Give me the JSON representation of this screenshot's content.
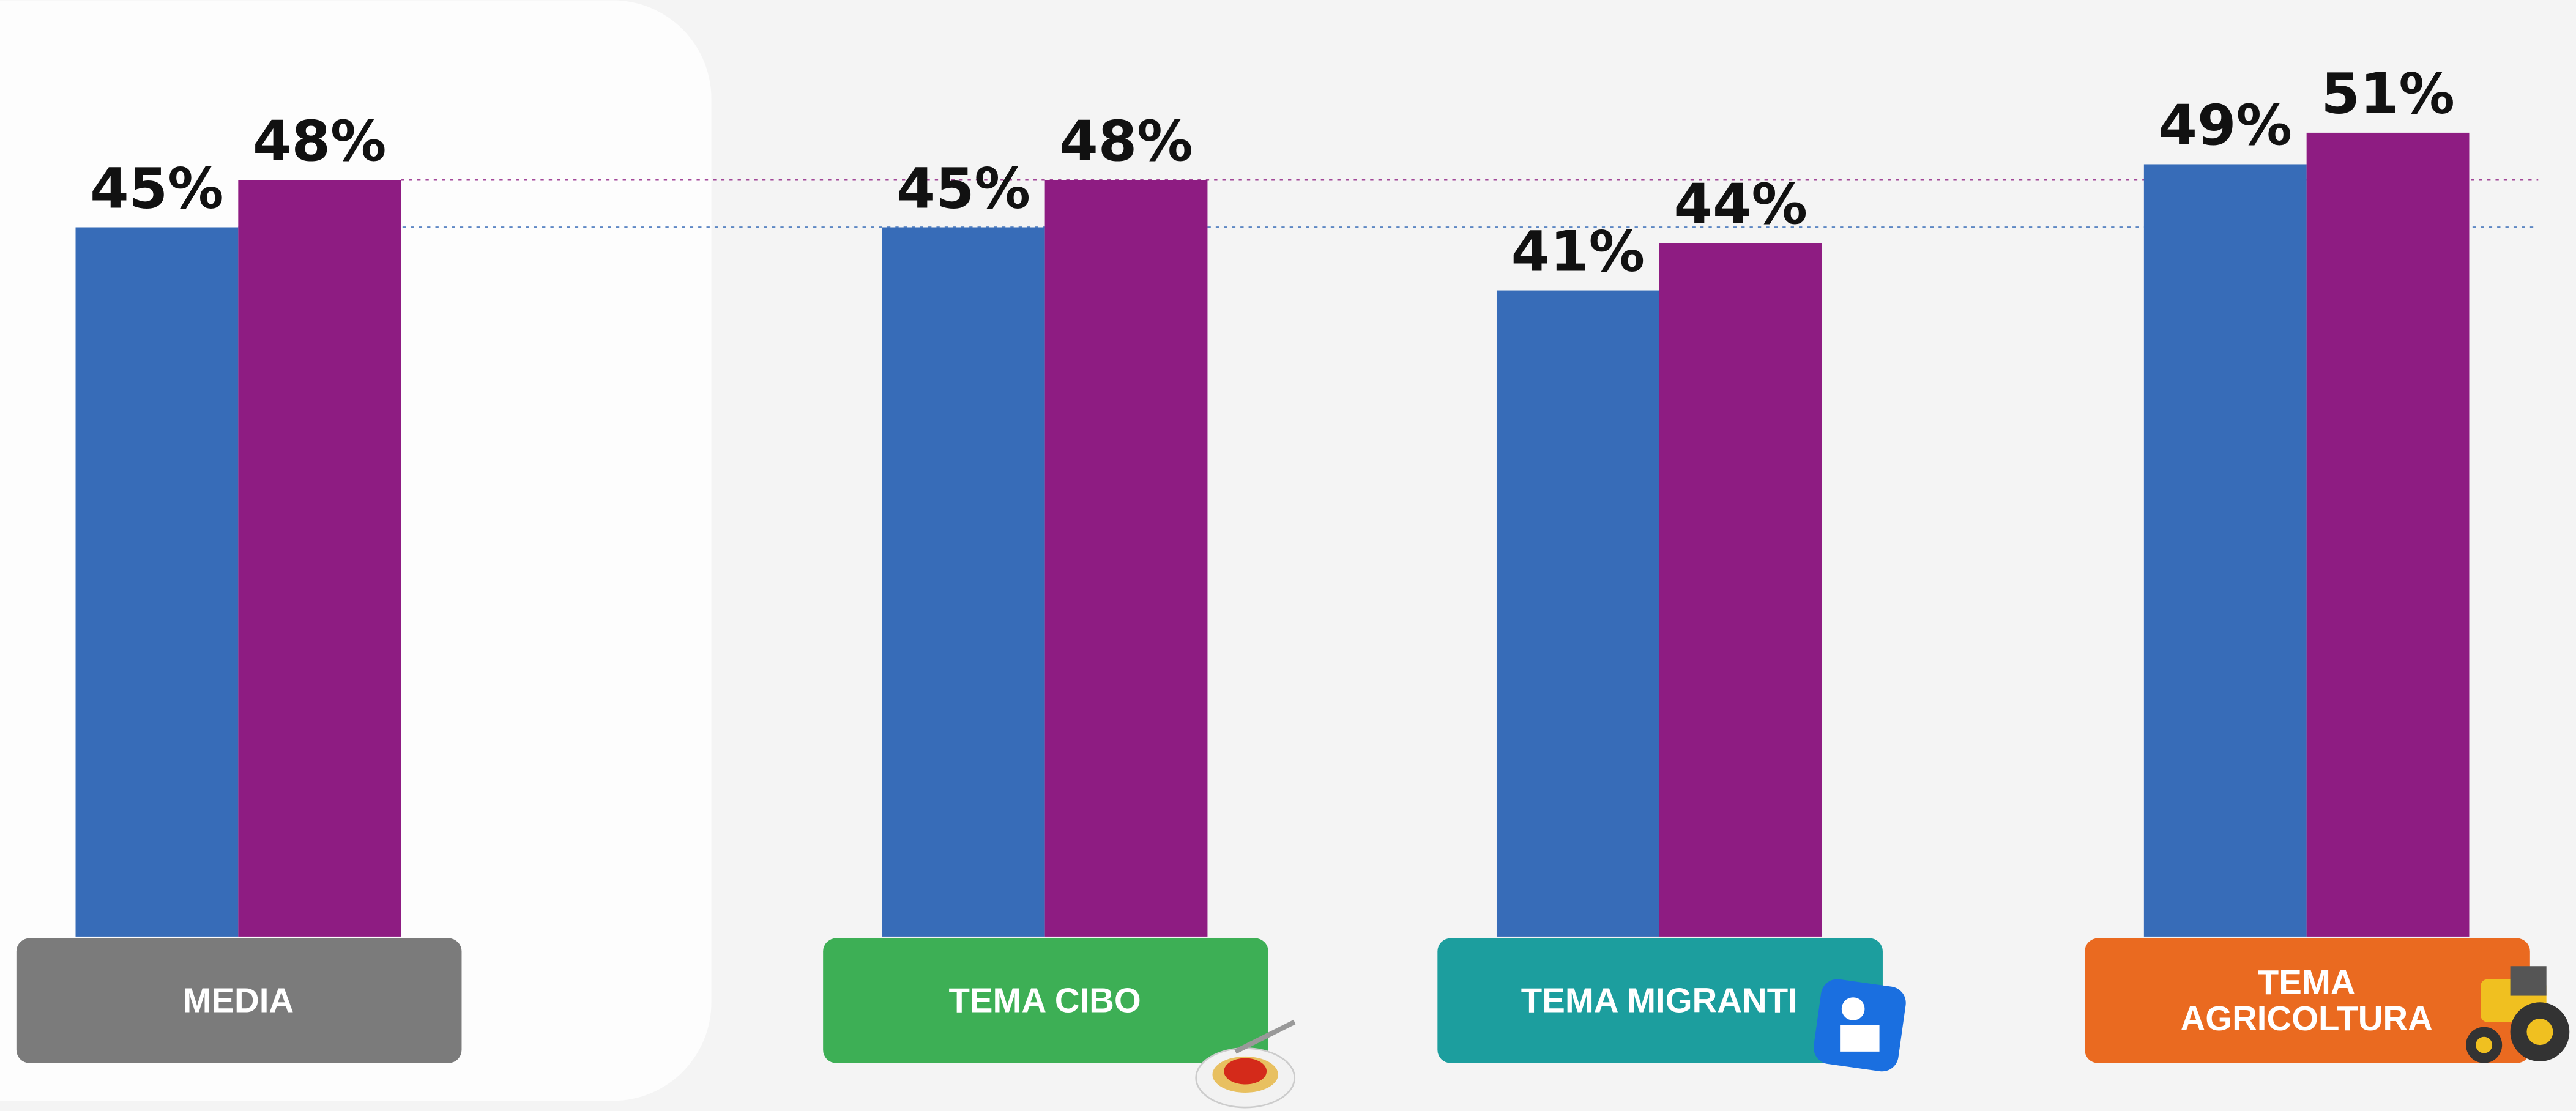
{
  "chart_data": {
    "type": "bar",
    "categories": [
      "MEDIA",
      "TEMA CIBO",
      "TEMA MIGRANTI",
      "TEMA AGRICOLTURA"
    ],
    "series": [
      {
        "color": "#376cb8",
        "values": [
          45,
          45,
          41,
          49
        ],
        "value_labels": [
          "45%",
          "45%",
          "41%",
          "49%"
        ]
      },
      {
        "color": "#8e1c82",
        "values": [
          48,
          48,
          44,
          51
        ],
        "value_labels": [
          "48%",
          "48%",
          "44%",
          "51%"
        ]
      }
    ],
    "label_colors": [
      "#7b7b7b",
      "#3daf55",
      "#1c9e9e",
      "#ea6a20"
    ],
    "ylim": [
      0,
      59.4
    ]
  }
}
